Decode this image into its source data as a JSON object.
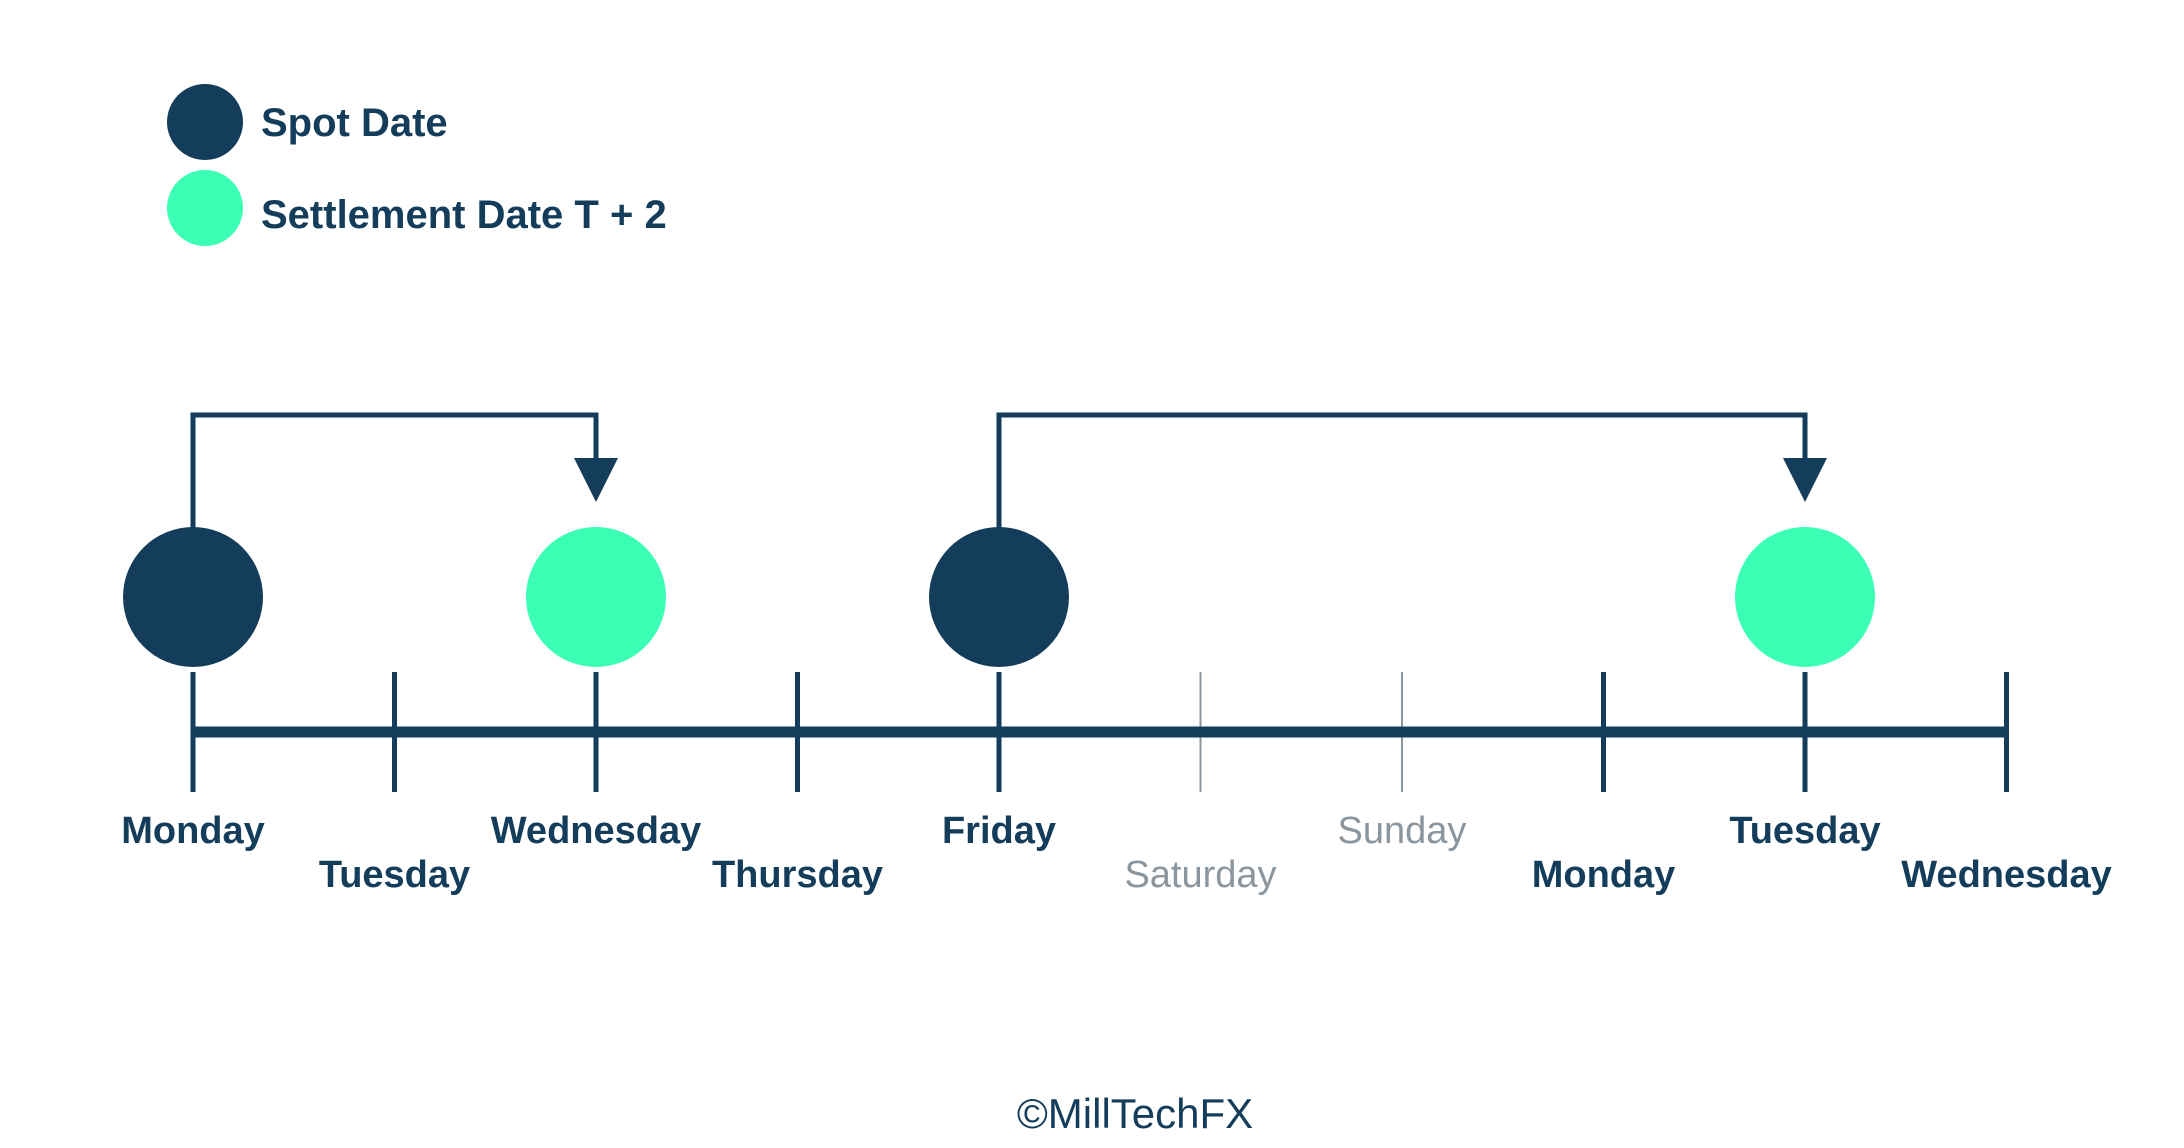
{
  "legend": [
    {
      "label": "Spot Date",
      "color": "#133d5a"
    },
    {
      "label": "Settlement Date T + 2",
      "color": "#3bffb5"
    }
  ],
  "colors": {
    "dark": "#133d5a",
    "accent": "#3bffb5",
    "muted": "#8a959e"
  },
  "timeline": {
    "days": [
      {
        "label": "Monday",
        "muted": false
      },
      {
        "label": "Tuesday",
        "muted": false
      },
      {
        "label": "Wednesday",
        "muted": false
      },
      {
        "label": "Thursday",
        "muted": false
      },
      {
        "label": "Friday",
        "muted": false
      },
      {
        "label": "Saturday",
        "muted": true
      },
      {
        "label": "Sunday",
        "muted": true
      },
      {
        "label": "Monday",
        "muted": false
      },
      {
        "label": "Tuesday",
        "muted": false
      },
      {
        "label": "Wednesday",
        "muted": false
      }
    ],
    "spot_dates": [
      0,
      4
    ],
    "settlement_dates": [
      2,
      8
    ],
    "arrows": [
      {
        "from": 0,
        "to": 2
      },
      {
        "from": 4,
        "to": 8
      }
    ]
  },
  "footer": "©MillTechFX"
}
